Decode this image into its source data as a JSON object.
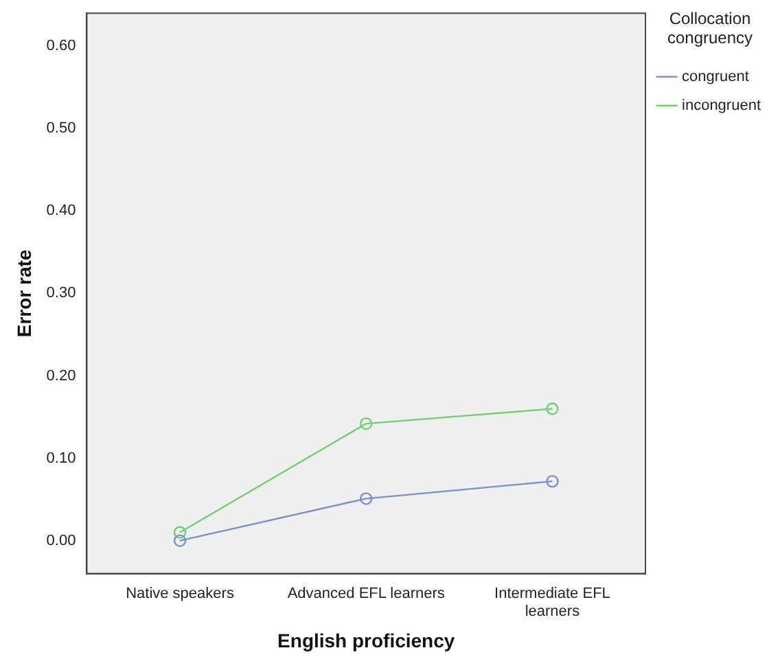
{
  "chart_data": {
    "type": "line",
    "xlabel": "English proficiency",
    "ylabel": "Error rate",
    "legend_title": "Collocation congruency",
    "legend": "top right",
    "marker": "circle",
    "line_style": "solid",
    "grid": false,
    "categories": [
      "Native speakers",
      "Advanced EFL learners",
      "Intermediate EFL learners"
    ],
    "ylim": [
      -0.04,
      0.64
    ],
    "yticks": [
      {
        "value": 0,
        "label": "0.00"
      },
      {
        "value": 0.1,
        "label": "0.10"
      },
      {
        "value": 0.2,
        "label": "0.20"
      },
      {
        "value": 0.3,
        "label": "0.30"
      },
      {
        "value": 0.4,
        "label": "0.40"
      },
      {
        "value": 0.5,
        "label": "0.50"
      },
      {
        "value": 0.6,
        "label": "0.60"
      }
    ],
    "series": [
      {
        "name": "congruent",
        "color": "#7b8ed1",
        "values": [
          0.0,
          0.051,
          0.072
        ]
      },
      {
        "name": "incongruent",
        "color": "#6fd16f",
        "values": [
          0.01,
          0.142,
          0.16
        ]
      }
    ]
  }
}
